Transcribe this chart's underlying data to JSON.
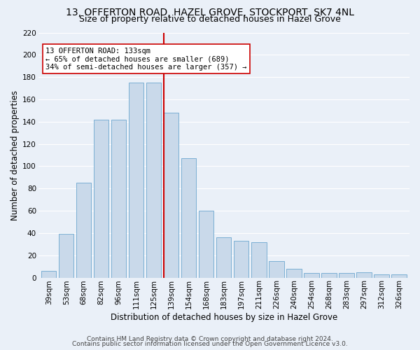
{
  "title": "13, OFFERTON ROAD, HAZEL GROVE, STOCKPORT, SK7 4NL",
  "subtitle": "Size of property relative to detached houses in Hazel Grove",
  "xlabel": "Distribution of detached houses by size in Hazel Grove",
  "ylabel": "Number of detached properties",
  "bar_labels": [
    "39sqm",
    "53sqm",
    "68sqm",
    "82sqm",
    "96sqm",
    "111sqm",
    "125sqm",
    "139sqm",
    "154sqm",
    "168sqm",
    "183sqm",
    "197sqm",
    "211sqm",
    "226sqm",
    "240sqm",
    "254sqm",
    "268sqm",
    "283sqm",
    "297sqm",
    "312sqm",
    "326sqm"
  ],
  "bar_values": [
    6,
    39,
    85,
    142,
    142,
    175,
    175,
    148,
    107,
    60,
    36,
    33,
    32,
    15,
    8,
    4,
    4,
    4,
    5,
    3,
    3
  ],
  "bar_color": "#c9d9ea",
  "bar_edge_color": "#7bafd4",
  "highlight_index": 7,
  "highlight_color": "#cc0000",
  "annotation_line1": "13 OFFERTON ROAD: 133sqm",
  "annotation_line2": "← 65% of detached houses are smaller (689)",
  "annotation_line3": "34% of semi-detached houses are larger (357) →",
  "annotation_box_color": "#ffffff",
  "annotation_box_edge_color": "#cc0000",
  "ylim": [
    0,
    220
  ],
  "yticks": [
    0,
    20,
    40,
    60,
    80,
    100,
    120,
    140,
    160,
    180,
    200,
    220
  ],
  "footer1": "Contains HM Land Registry data © Crown copyright and database right 2024.",
  "footer2": "Contains public sector information licensed under the Open Government Licence v3.0.",
  "background_color": "#eaf0f8",
  "grid_color": "#ffffff",
  "title_fontsize": 10,
  "subtitle_fontsize": 9,
  "axis_label_fontsize": 8.5,
  "tick_fontsize": 7.5,
  "annotation_fontsize": 7.5,
  "footer_fontsize": 6.5
}
